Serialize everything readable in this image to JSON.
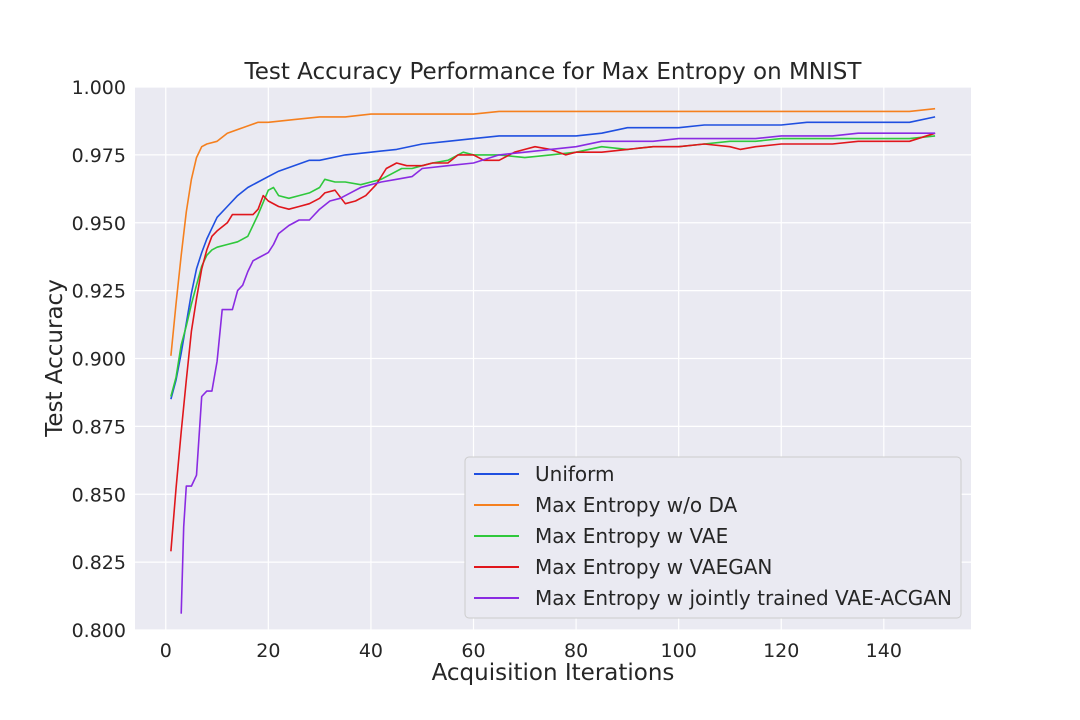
{
  "chart_data": {
    "type": "line",
    "title": "Test Accuracy Performance for Max Entropy on MNIST",
    "xlabel": "Acquisition Iterations",
    "ylabel": "Test Accuracy",
    "xlim": [
      -6,
      157
    ],
    "ylim": [
      0.8,
      1.0
    ],
    "xticks": [
      0,
      20,
      40,
      60,
      80,
      100,
      120,
      140
    ],
    "yticks": [
      0.8,
      0.825,
      0.85,
      0.875,
      0.9,
      0.925,
      0.95,
      0.975,
      1.0
    ],
    "ytick_labels": [
      "0.800",
      "0.825",
      "0.850",
      "0.875",
      "0.900",
      "0.925",
      "0.950",
      "0.975",
      "1.000"
    ],
    "grid": true,
    "legend_position": "lower-right",
    "series": [
      {
        "name": "Uniform",
        "color": "#1f4fe0",
        "points": [
          [
            1,
            0.885
          ],
          [
            2,
            0.892
          ],
          [
            3,
            0.902
          ],
          [
            4,
            0.913
          ],
          [
            5,
            0.924
          ],
          [
            6,
            0.933
          ],
          [
            7,
            0.939
          ],
          [
            8,
            0.944
          ],
          [
            9,
            0.948
          ],
          [
            10,
            0.952
          ],
          [
            12,
            0.956
          ],
          [
            14,
            0.96
          ],
          [
            16,
            0.963
          ],
          [
            18,
            0.965
          ],
          [
            20,
            0.967
          ],
          [
            22,
            0.969
          ],
          [
            25,
            0.971
          ],
          [
            28,
            0.973
          ],
          [
            30,
            0.973
          ],
          [
            35,
            0.975
          ],
          [
            40,
            0.976
          ],
          [
            45,
            0.977
          ],
          [
            50,
            0.979
          ],
          [
            55,
            0.98
          ],
          [
            60,
            0.981
          ],
          [
            65,
            0.982
          ],
          [
            70,
            0.982
          ],
          [
            75,
            0.982
          ],
          [
            80,
            0.982
          ],
          [
            85,
            0.983
          ],
          [
            90,
            0.985
          ],
          [
            95,
            0.985
          ],
          [
            100,
            0.985
          ],
          [
            105,
            0.986
          ],
          [
            110,
            0.986
          ],
          [
            115,
            0.986
          ],
          [
            120,
            0.986
          ],
          [
            125,
            0.987
          ],
          [
            130,
            0.987
          ],
          [
            135,
            0.987
          ],
          [
            140,
            0.987
          ],
          [
            145,
            0.987
          ],
          [
            150,
            0.989
          ]
        ]
      },
      {
        "name": "Max Entropy w/o DA",
        "color": "#f5801f",
        "points": [
          [
            1,
            0.901
          ],
          [
            2,
            0.92
          ],
          [
            3,
            0.938
          ],
          [
            4,
            0.954
          ],
          [
            5,
            0.966
          ],
          [
            6,
            0.974
          ],
          [
            7,
            0.978
          ],
          [
            8,
            0.979
          ],
          [
            10,
            0.98
          ],
          [
            12,
            0.983
          ],
          [
            15,
            0.985
          ],
          [
            18,
            0.987
          ],
          [
            20,
            0.987
          ],
          [
            25,
            0.988
          ],
          [
            30,
            0.989
          ],
          [
            35,
            0.989
          ],
          [
            40,
            0.99
          ],
          [
            45,
            0.99
          ],
          [
            50,
            0.99
          ],
          [
            55,
            0.99
          ],
          [
            60,
            0.99
          ],
          [
            65,
            0.991
          ],
          [
            70,
            0.991
          ],
          [
            75,
            0.991
          ],
          [
            80,
            0.991
          ],
          [
            85,
            0.991
          ],
          [
            90,
            0.991
          ],
          [
            95,
            0.991
          ],
          [
            100,
            0.991
          ],
          [
            105,
            0.991
          ],
          [
            110,
            0.991
          ],
          [
            115,
            0.991
          ],
          [
            120,
            0.991
          ],
          [
            125,
            0.991
          ],
          [
            130,
            0.991
          ],
          [
            135,
            0.991
          ],
          [
            140,
            0.991
          ],
          [
            145,
            0.991
          ],
          [
            150,
            0.992
          ]
        ]
      },
      {
        "name": "Max Entropy w VAE",
        "color": "#2fc83c",
        "points": [
          [
            1,
            0.886
          ],
          [
            2,
            0.893
          ],
          [
            3,
            0.905
          ],
          [
            4,
            0.912
          ],
          [
            5,
            0.92
          ],
          [
            6,
            0.927
          ],
          [
            7,
            0.934
          ],
          [
            8,
            0.938
          ],
          [
            9,
            0.94
          ],
          [
            10,
            0.941
          ],
          [
            12,
            0.942
          ],
          [
            14,
            0.943
          ],
          [
            16,
            0.945
          ],
          [
            18,
            0.953
          ],
          [
            20,
            0.962
          ],
          [
            21,
            0.963
          ],
          [
            22,
            0.96
          ],
          [
            24,
            0.959
          ],
          [
            26,
            0.96
          ],
          [
            28,
            0.961
          ],
          [
            30,
            0.963
          ],
          [
            31,
            0.966
          ],
          [
            33,
            0.965
          ],
          [
            35,
            0.965
          ],
          [
            38,
            0.964
          ],
          [
            40,
            0.965
          ],
          [
            42,
            0.966
          ],
          [
            44,
            0.968
          ],
          [
            46,
            0.97
          ],
          [
            48,
            0.97
          ],
          [
            50,
            0.971
          ],
          [
            52,
            0.972
          ],
          [
            55,
            0.973
          ],
          [
            58,
            0.976
          ],
          [
            60,
            0.975
          ],
          [
            65,
            0.975
          ],
          [
            70,
            0.974
          ],
          [
            75,
            0.975
          ],
          [
            80,
            0.976
          ],
          [
            85,
            0.978
          ],
          [
            90,
            0.977
          ],
          [
            95,
            0.978
          ],
          [
            100,
            0.978
          ],
          [
            105,
            0.979
          ],
          [
            110,
            0.98
          ],
          [
            115,
            0.98
          ],
          [
            120,
            0.981
          ],
          [
            125,
            0.981
          ],
          [
            130,
            0.981
          ],
          [
            135,
            0.981
          ],
          [
            140,
            0.981
          ],
          [
            145,
            0.981
          ],
          [
            150,
            0.982
          ]
        ]
      },
      {
        "name": "Max Entropy w VAEGAN",
        "color": "#e0161c",
        "points": [
          [
            1,
            0.829
          ],
          [
            2,
            0.852
          ],
          [
            3,
            0.873
          ],
          [
            4,
            0.892
          ],
          [
            5,
            0.91
          ],
          [
            6,
            0.922
          ],
          [
            7,
            0.933
          ],
          [
            8,
            0.94
          ],
          [
            9,
            0.945
          ],
          [
            10,
            0.947
          ],
          [
            12,
            0.95
          ],
          [
            13,
            0.953
          ],
          [
            15,
            0.953
          ],
          [
            17,
            0.953
          ],
          [
            18,
            0.955
          ],
          [
            19,
            0.96
          ],
          [
            20,
            0.958
          ],
          [
            22,
            0.956
          ],
          [
            24,
            0.955
          ],
          [
            26,
            0.956
          ],
          [
            28,
            0.957
          ],
          [
            30,
            0.959
          ],
          [
            31,
            0.961
          ],
          [
            33,
            0.962
          ],
          [
            35,
            0.957
          ],
          [
            37,
            0.958
          ],
          [
            39,
            0.96
          ],
          [
            41,
            0.964
          ],
          [
            43,
            0.97
          ],
          [
            45,
            0.972
          ],
          [
            47,
            0.971
          ],
          [
            50,
            0.971
          ],
          [
            52,
            0.972
          ],
          [
            55,
            0.972
          ],
          [
            57,
            0.975
          ],
          [
            60,
            0.975
          ],
          [
            62,
            0.973
          ],
          [
            65,
            0.973
          ],
          [
            68,
            0.976
          ],
          [
            70,
            0.977
          ],
          [
            72,
            0.978
          ],
          [
            75,
            0.977
          ],
          [
            78,
            0.975
          ],
          [
            80,
            0.976
          ],
          [
            85,
            0.976
          ],
          [
            90,
            0.977
          ],
          [
            95,
            0.978
          ],
          [
            100,
            0.978
          ],
          [
            105,
            0.979
          ],
          [
            110,
            0.978
          ],
          [
            112,
            0.977
          ],
          [
            115,
            0.978
          ],
          [
            120,
            0.979
          ],
          [
            125,
            0.979
          ],
          [
            130,
            0.979
          ],
          [
            135,
            0.98
          ],
          [
            140,
            0.98
          ],
          [
            145,
            0.98
          ],
          [
            150,
            0.983
          ]
        ]
      },
      {
        "name": "Max Entropy w jointly trained VAE-ACGAN",
        "color": "#8a2be2",
        "points": [
          [
            3,
            0.806
          ],
          [
            3.5,
            0.838
          ],
          [
            4,
            0.853
          ],
          [
            5,
            0.853
          ],
          [
            6,
            0.857
          ],
          [
            7,
            0.886
          ],
          [
            8,
            0.888
          ],
          [
            9,
            0.888
          ],
          [
            10,
            0.899
          ],
          [
            11,
            0.918
          ],
          [
            12,
            0.918
          ],
          [
            13,
            0.918
          ],
          [
            14,
            0.925
          ],
          [
            15,
            0.927
          ],
          [
            16,
            0.932
          ],
          [
            17,
            0.936
          ],
          [
            18,
            0.937
          ],
          [
            20,
            0.939
          ],
          [
            21,
            0.942
          ],
          [
            22,
            0.946
          ],
          [
            24,
            0.949
          ],
          [
            26,
            0.951
          ],
          [
            28,
            0.951
          ],
          [
            30,
            0.955
          ],
          [
            32,
            0.958
          ],
          [
            34,
            0.959
          ],
          [
            36,
            0.961
          ],
          [
            38,
            0.963
          ],
          [
            40,
            0.964
          ],
          [
            42,
            0.965
          ],
          [
            45,
            0.966
          ],
          [
            48,
            0.967
          ],
          [
            50,
            0.97
          ],
          [
            55,
            0.971
          ],
          [
            60,
            0.972
          ],
          [
            65,
            0.975
          ],
          [
            70,
            0.976
          ],
          [
            75,
            0.977
          ],
          [
            80,
            0.978
          ],
          [
            85,
            0.98
          ],
          [
            90,
            0.98
          ],
          [
            95,
            0.98
          ],
          [
            100,
            0.981
          ],
          [
            105,
            0.981
          ],
          [
            110,
            0.981
          ],
          [
            115,
            0.981
          ],
          [
            120,
            0.982
          ],
          [
            125,
            0.982
          ],
          [
            130,
            0.982
          ],
          [
            135,
            0.983
          ],
          [
            140,
            0.983
          ],
          [
            145,
            0.983
          ],
          [
            150,
            0.983
          ]
        ]
      }
    ]
  }
}
